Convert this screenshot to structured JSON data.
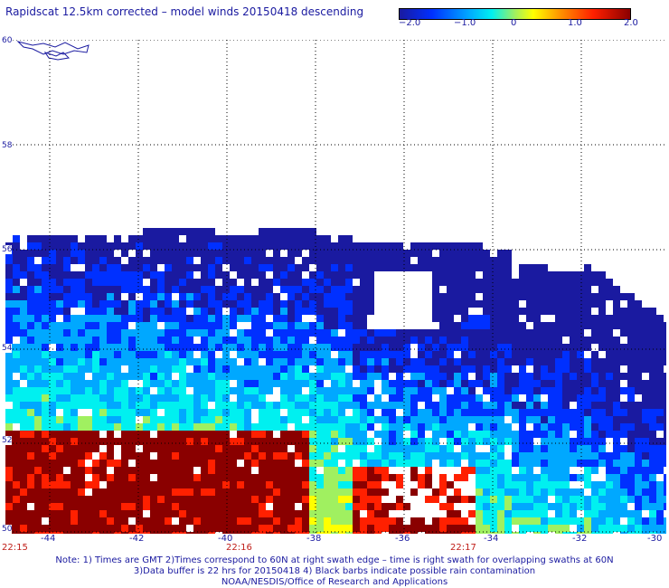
{
  "title": "Rapidscat 12.5km corrected – model winds 20150418 descending",
  "colorbar": {
    "ticks": [
      "−2.0",
      "−1.0",
      "0",
      "1.0",
      "2.0"
    ],
    "colors": [
      "#1a1aa0",
      "#0030ff",
      "#00a8ff",
      "#00f0f0",
      "#a0f060",
      "#ffff00",
      "#ff9000",
      "#ff2000",
      "#8a0000"
    ]
  },
  "map": {
    "lat_labels": [
      "60",
      "58",
      "56",
      "54",
      "52",
      "50"
    ],
    "lon_labels": [
      "-44",
      "-42",
      "-40",
      "-38",
      "-36",
      "-34",
      "-32",
      "-30"
    ],
    "time_labels": [
      "22:15",
      "22:16",
      "22:17"
    ]
  },
  "footer": {
    "note1": "Note: 1) Times are GMT 2)Times correspond to 60N at right swath edge – time is right swath for overlapping swaths at 60N",
    "note2": "3)Data buffer is 22 hrs for 20150418 4) Black barbs indicate possible rain contamination",
    "note3": "NOAA/NESDIS/Office of Research and Applications"
  }
}
